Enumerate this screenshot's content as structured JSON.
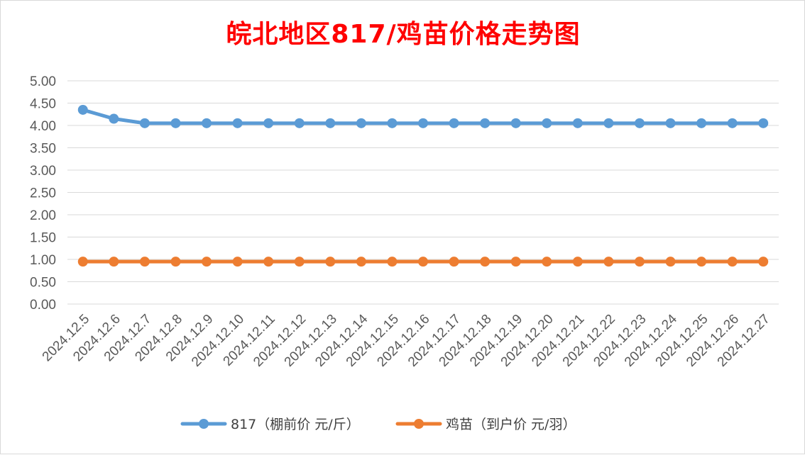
{
  "chart_data": {
    "type": "line",
    "title": "皖北地区817/鸡苗价格走势图",
    "xlabel": "",
    "ylabel": "",
    "ylim": [
      0,
      5
    ],
    "y_ticks": [
      "0.00",
      "0.50",
      "1.00",
      "1.50",
      "2.00",
      "2.50",
      "3.00",
      "3.50",
      "4.00",
      "4.50",
      "5.00"
    ],
    "grid": true,
    "legend_position": "bottom",
    "categories": [
      "2024.12.5",
      "2024.12.6",
      "2024.12.7",
      "2024.12.8",
      "2024.12.9",
      "2024.12.10",
      "2024.12.11",
      "2024.12.12",
      "2024.12.13",
      "2024.12.14",
      "2024.12.15",
      "2024.12.16",
      "2024.12.17",
      "2024.12.18",
      "2024.12.19",
      "2024.12.20",
      "2024.12.21",
      "2024.12.22",
      "2024.12.23",
      "2024.12.24",
      "2024.12.25",
      "2024.12.26",
      "2024.12.27"
    ],
    "series": [
      {
        "name": "817（棚前价 元/斤）",
        "color": "#5b9bd5",
        "values": [
          4.35,
          4.15,
          4.05,
          4.05,
          4.05,
          4.05,
          4.05,
          4.05,
          4.05,
          4.05,
          4.05,
          4.05,
          4.05,
          4.05,
          4.05,
          4.05,
          4.05,
          4.05,
          4.05,
          4.05,
          4.05,
          4.05,
          4.05
        ]
      },
      {
        "name": "鸡苗（到户价 元/羽）",
        "color": "#ed7d31",
        "values": [
          0.95,
          0.95,
          0.95,
          0.95,
          0.95,
          0.95,
          0.95,
          0.95,
          0.95,
          0.95,
          0.95,
          0.95,
          0.95,
          0.95,
          0.95,
          0.95,
          0.95,
          0.95,
          0.95,
          0.95,
          0.95,
          0.95,
          0.95
        ]
      }
    ]
  }
}
